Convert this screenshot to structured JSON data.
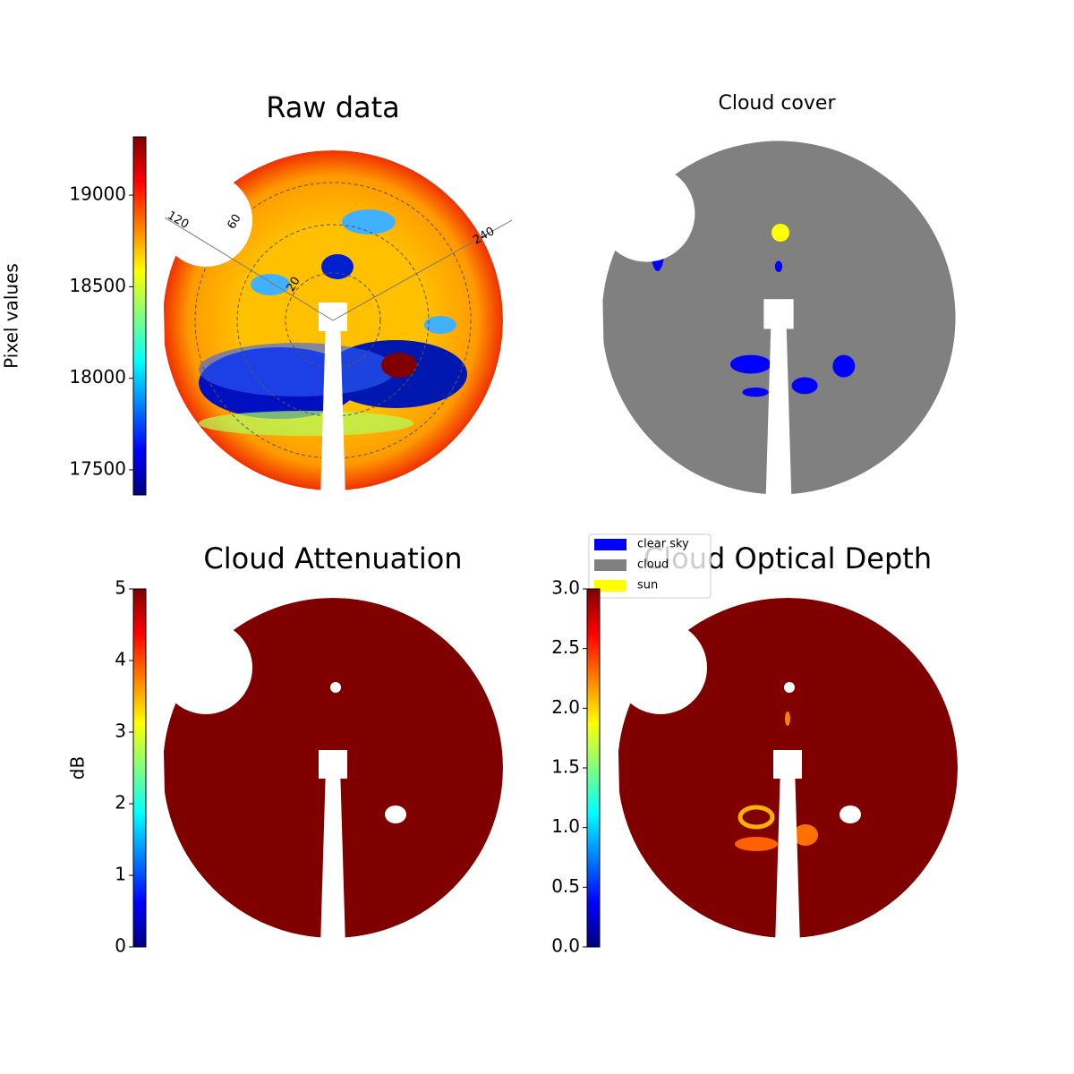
{
  "chart_data": [
    {
      "type": "image",
      "title": "Raw data",
      "colorbar_label": "Pixel values",
      "ylim": [
        17363,
        19318
      ],
      "yticks": [
        17500,
        18000,
        18500,
        19000
      ],
      "colormap": "jet",
      "annotations": [
        "120",
        "60",
        "240",
        "20"
      ]
    },
    {
      "type": "image",
      "title": "Cloud cover",
      "series": [
        {
          "name": "clear sky",
          "color": "#0000ff"
        },
        {
          "name": "cloud",
          "color": "#808080"
        },
        {
          "name": "sun",
          "color": "#ffff00"
        }
      ]
    },
    {
      "type": "image",
      "title": "Cloud Attenuation",
      "colorbar_label": "dB",
      "ylim": [
        0,
        5
      ],
      "yticks": [
        0,
        1,
        2,
        3,
        4,
        5
      ],
      "colormap": "jet"
    },
    {
      "type": "image",
      "title": "Cloud Optical Depth",
      "ylim": [
        0,
        3
      ],
      "yticks": [
        {
          "value": 0,
          "label": "0.0"
        },
        {
          "value": 0.5,
          "label": "0.5"
        },
        {
          "value": 1,
          "label": "1.0"
        },
        {
          "value": 1.5,
          "label": "1.5"
        },
        {
          "value": 2,
          "label": "2.0"
        },
        {
          "value": 2.5,
          "label": "2.5"
        },
        {
          "value": 3,
          "label": "3.0"
        }
      ],
      "colormap": "jet"
    }
  ]
}
